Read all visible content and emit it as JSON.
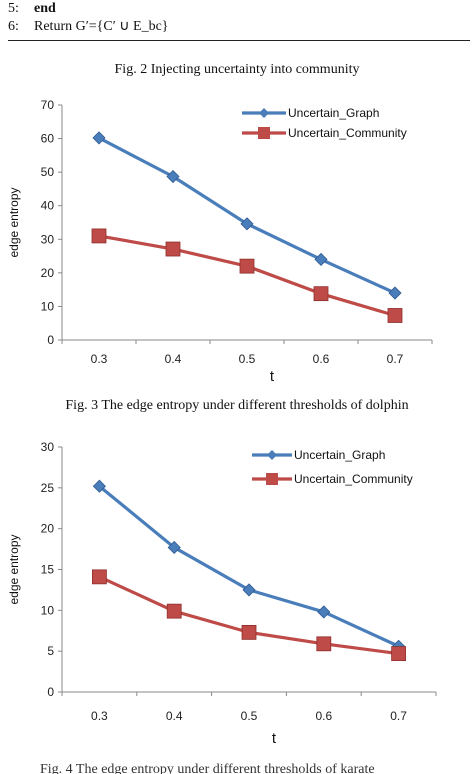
{
  "algorithm": {
    "lines": [
      {
        "num": "5:",
        "bold": "end",
        "text": ""
      },
      {
        "num": "6:",
        "bold": "",
        "text": "Return G′={C′ ∪ E_bc}"
      }
    ]
  },
  "captions": {
    "fig2": "Fig. 2 Injecting uncertainty into community",
    "fig3": "Fig. 3 The edge entropy under different thresholds of dolphin",
    "fig4_partial": "Fig. 4 The edge entropy under different thresholds of karate"
  },
  "colors": {
    "graph": "#4A7EBB",
    "community": "#BE4B48"
  },
  "chart_data": [
    {
      "type": "line",
      "title": "",
      "xlabel": "t",
      "ylabel": "edge  entropy",
      "categories": [
        "0.3",
        "0.4",
        "0.5",
        "0.6",
        "0.7"
      ],
      "ylim": [
        0,
        70
      ],
      "yticks": [
        0,
        10,
        20,
        30,
        40,
        50,
        60,
        70
      ],
      "grid": false,
      "legend_position": "top-right",
      "series": [
        {
          "name": "Uncertain_Graph",
          "values": [
            60.2,
            48.7,
            34.6,
            24.0,
            14.0
          ],
          "color": "#4A7EBB",
          "marker": "diamond"
        },
        {
          "name": "Uncertain_Community",
          "values": [
            31.0,
            27.1,
            22.0,
            13.8,
            7.3
          ],
          "color": "#BE4B48",
          "marker": "square"
        }
      ]
    },
    {
      "type": "line",
      "title": "",
      "xlabel": "t",
      "ylabel": "edge  entropy",
      "categories": [
        "0.3",
        "0.4",
        "0.5",
        "0.6",
        "0.7"
      ],
      "ylim": [
        0,
        30
      ],
      "yticks": [
        0,
        5,
        10,
        15,
        20,
        25,
        30
      ],
      "grid": false,
      "legend_position": "top-right",
      "series": [
        {
          "name": "Uncertain_Graph",
          "values": [
            25.2,
            17.7,
            12.5,
            9.8,
            5.6
          ],
          "color": "#4A7EBB",
          "marker": "diamond"
        },
        {
          "name": "Uncertain_Community",
          "values": [
            14.1,
            9.9,
            7.3,
            5.9,
            4.7
          ],
          "color": "#BE4B48",
          "marker": "square"
        }
      ]
    }
  ]
}
